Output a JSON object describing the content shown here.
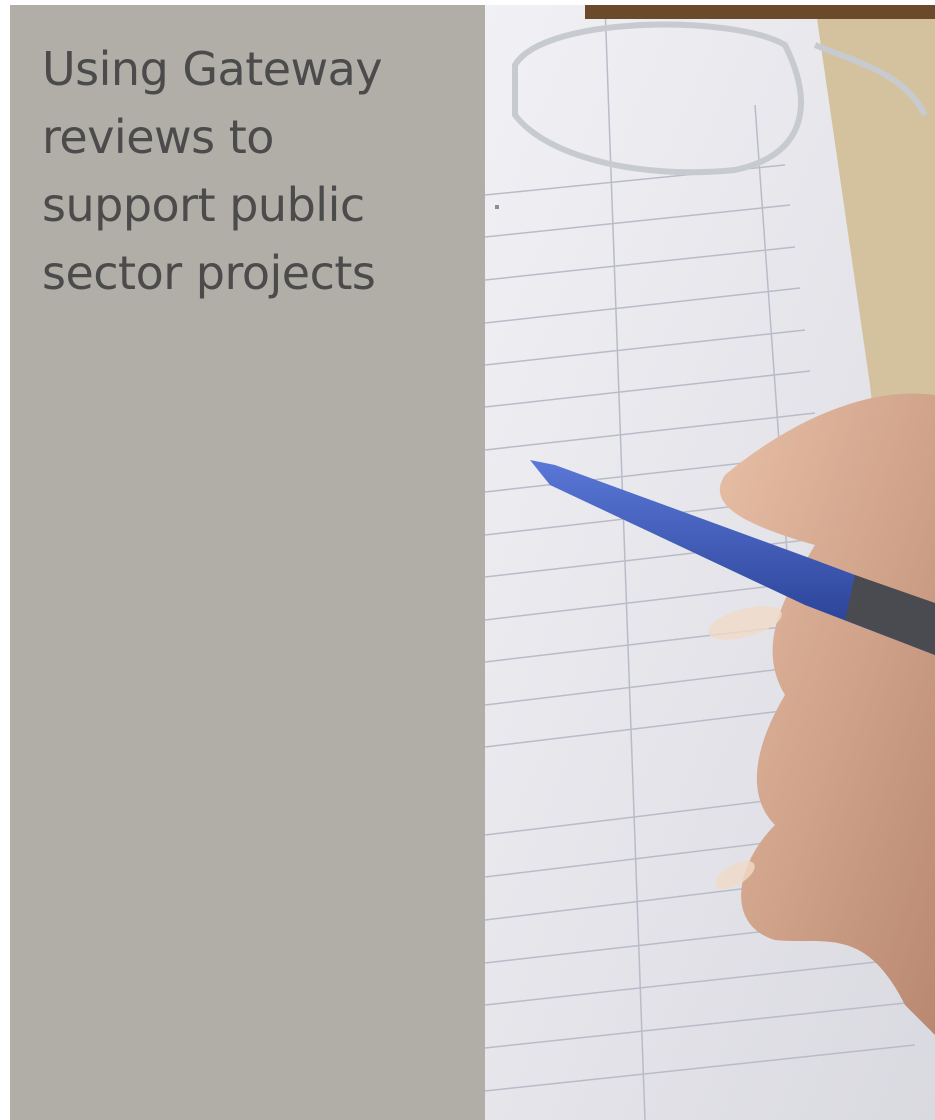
{
  "cover": {
    "title_lines": [
      "Using Gateway",
      "reviews to",
      "support public",
      "sector projects"
    ]
  }
}
